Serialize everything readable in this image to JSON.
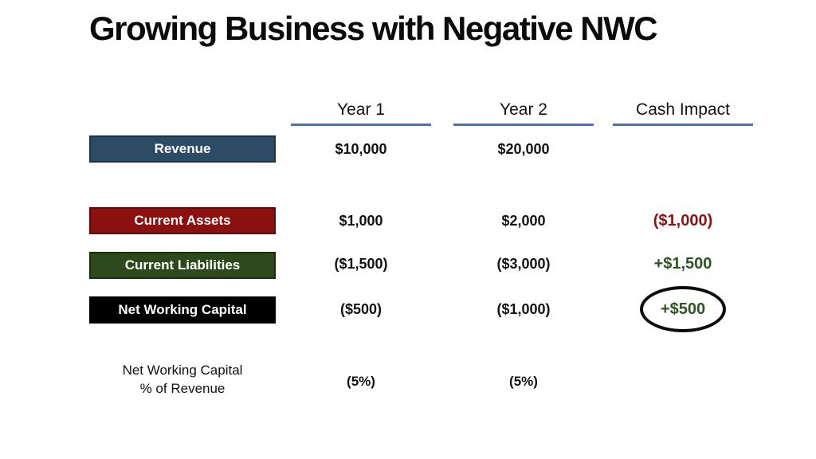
{
  "slide": {
    "title": "Growing Business with Negative NWC"
  },
  "columns": {
    "year1": "Year 1",
    "year2": "Year 2",
    "cash_impact": "Cash Impact"
  },
  "rows": {
    "revenue": {
      "label": "Revenue",
      "year1": "$10,000",
      "year2": "$20,000",
      "cash_impact": ""
    },
    "current_assets": {
      "label": "Current Assets",
      "year1": "$1,000",
      "year2": "$2,000",
      "cash_impact": "($1,000)"
    },
    "current_liabilities": {
      "label": "Current Liabilities",
      "year1": "($1,500)",
      "year2": "($3,000)",
      "cash_impact": "+$1,500"
    },
    "net_working_capital": {
      "label": "Net Working Capital",
      "year1": "($500)",
      "year2": "($1,000)",
      "cash_impact": "+$500"
    },
    "nwc_pct_of_revenue": {
      "label_line1": "Net Working Capital",
      "label_line2": "% of Revenue",
      "year1": "(5%)",
      "year2": "(5%)"
    }
  },
  "colors": {
    "revenue_box": "#2E4B66",
    "current_assets_box": "#8B1111",
    "current_liabilities_box": "#2D4A1C",
    "net_working_capital_box": "#000000",
    "negative_text": "#8B1414",
    "positive_text": "#2E5423",
    "header_underline": "#4472C4",
    "background": "#FFFFFF"
  },
  "annotations": {
    "circled_value": "+$500"
  }
}
